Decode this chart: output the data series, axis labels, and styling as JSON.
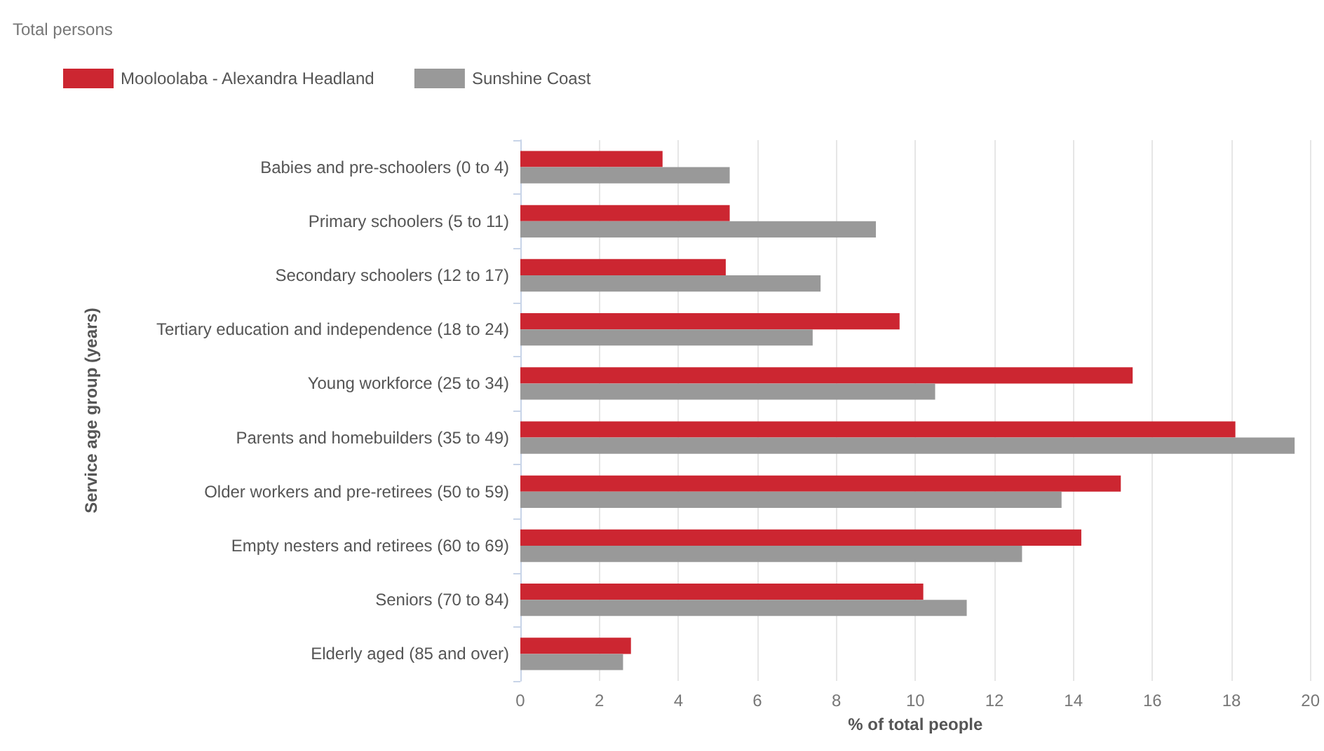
{
  "chart_data": {
    "type": "bar",
    "orientation": "horizontal",
    "title": "Total persons",
    "xlabel": "% of total people",
    "ylabel": "Service age group (years)",
    "categories": [
      "Babies and pre-schoolers (0 to 4)",
      "Primary schoolers (5 to 11)",
      "Secondary schoolers (12 to 17)",
      "Tertiary education and independence (18 to 24)",
      "Young workforce (25 to 34)",
      "Parents and homebuilders (35 to 49)",
      "Older workers and pre-retirees (50 to 59)",
      "Empty nesters and retirees (60 to 69)",
      "Seniors (70 to 84)",
      "Elderly aged (85 and over)"
    ],
    "series": [
      {
        "name": "Mooloolaba - Alexandra Headland",
        "color": "#cc2631",
        "values": [
          3.6,
          5.3,
          5.2,
          9.6,
          15.5,
          18.1,
          15.2,
          14.2,
          10.2,
          2.8
        ]
      },
      {
        "name": "Sunshine Coast",
        "color": "#999999",
        "values": [
          5.3,
          9.0,
          7.6,
          7.4,
          10.5,
          19.6,
          13.7,
          12.7,
          11.3,
          2.6
        ]
      }
    ],
    "xlim": [
      0,
      20
    ],
    "xticks": [
      0,
      2,
      4,
      6,
      8,
      10,
      12,
      14,
      16,
      18,
      20
    ],
    "grid": "x",
    "legend": "top left"
  }
}
